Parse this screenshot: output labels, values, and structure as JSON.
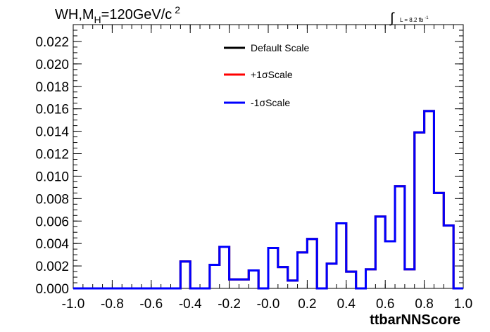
{
  "chart_data": {
    "type": "line",
    "title_main": "WH,M",
    "title_sub": "H",
    "title_rest": "=120GeV/c",
    "title_sup": "2",
    "lumi": {
      "text": "L = 8.2 fb",
      "sup": "-1"
    },
    "xlabel": "ttbarNNScore",
    "xlim": [
      -1.0,
      1.0
    ],
    "ylim": [
      0,
      0.0235
    ],
    "x_ticks": [
      "-1.0",
      "-0.8",
      "-0.6",
      "-0.4",
      "-0.2",
      "-0.0",
      "0.2",
      "0.4",
      "0.6",
      "0.8",
      "1.0"
    ],
    "x_tick_values": [
      -1.0,
      -0.8,
      -0.6,
      -0.4,
      -0.2,
      0.0,
      0.2,
      0.4,
      0.6,
      0.8,
      1.0
    ],
    "y_ticks": [
      "0.000",
      "0.002",
      "0.004",
      "0.006",
      "0.008",
      "0.010",
      "0.012",
      "0.014",
      "0.016",
      "0.018",
      "0.020",
      "0.022"
    ],
    "y_tick_values": [
      0,
      0.002,
      0.004,
      0.006,
      0.008,
      0.01,
      0.012,
      0.014,
      0.016,
      0.018,
      0.02,
      0.022
    ],
    "bin_edges": [
      -1.0,
      -0.95,
      -0.9,
      -0.85,
      -0.8,
      -0.75,
      -0.7,
      -0.65,
      -0.6,
      -0.55,
      -0.5,
      -0.45,
      -0.4,
      -0.35,
      -0.3,
      -0.25,
      -0.2,
      -0.15,
      -0.1,
      -0.05,
      0.0,
      0.05,
      0.1,
      0.15,
      0.2,
      0.25,
      0.3,
      0.35,
      0.4,
      0.45,
      0.5,
      0.55,
      0.6,
      0.65,
      0.7,
      0.75,
      0.8,
      0.85,
      0.9,
      0.95,
      1.0
    ],
    "legend_position": "top-center",
    "series": [
      {
        "name": "Default Scale",
        "color": "#000000",
        "values": [
          0,
          0,
          0,
          0,
          0,
          0,
          0,
          0,
          0,
          0,
          0,
          0.0024,
          0,
          0,
          0.0021,
          0.0037,
          0.0008,
          0.0008,
          0.0016,
          0,
          0.0036,
          0.0019,
          0.0007,
          0.0032,
          0.0044,
          0,
          0.0022,
          0.0058,
          0.0015,
          0,
          0.0017,
          0.0064,
          0.0042,
          0.0091,
          0.0017,
          0.0139,
          0.0158,
          0.0085,
          0.0056,
          0
        ]
      },
      {
        "name": "+1σScale",
        "color": "#ff0000",
        "values": [
          0,
          0,
          0,
          0,
          0,
          0,
          0,
          0,
          0,
          0,
          0,
          0.0024,
          0,
          0,
          0.0021,
          0.0037,
          0.0008,
          0.0008,
          0.0016,
          0,
          0.0036,
          0.0019,
          0.0007,
          0.0032,
          0.0044,
          0,
          0.0022,
          0.0058,
          0.0015,
          0,
          0.0017,
          0.0064,
          0.0042,
          0.0091,
          0.0017,
          0.0139,
          0.0158,
          0.0085,
          0.0056,
          0
        ]
      },
      {
        "name": "-1σScale",
        "color": "#0000ff",
        "values": [
          0,
          0,
          0,
          0,
          0,
          0,
          0,
          0,
          0,
          0,
          0,
          0.0024,
          0,
          0,
          0.0021,
          0.0037,
          0.0008,
          0.0008,
          0.0016,
          0,
          0.0036,
          0.0019,
          0.0007,
          0.0032,
          0.0044,
          0,
          0.0022,
          0.0058,
          0.0015,
          0,
          0.0017,
          0.0064,
          0.0042,
          0.0091,
          0.0017,
          0.0139,
          0.0158,
          0.0085,
          0.0056,
          0
        ]
      }
    ]
  }
}
